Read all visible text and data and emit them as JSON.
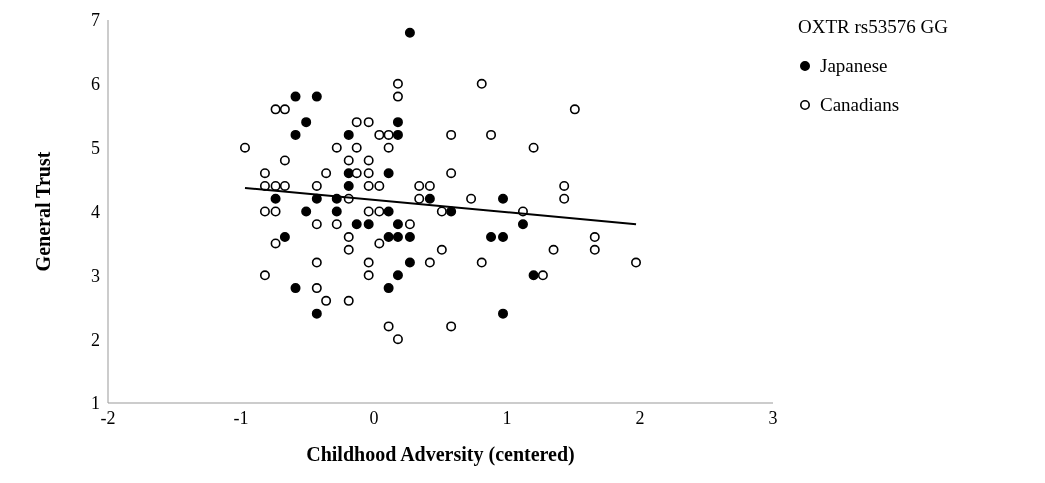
{
  "chart_data": {
    "type": "scatter",
    "xlabel": "Childhood Adversity (centered)",
    "ylabel": "General Trust",
    "legend_title": "OXTR rs53576 GG",
    "legend": "top right",
    "xlim": [
      -2,
      3
    ],
    "xticks": [
      -2,
      -1,
      0,
      1,
      2,
      3
    ],
    "ylim": [
      1,
      7
    ],
    "yticks": [
      1,
      2,
      3,
      4,
      5,
      6,
      7
    ],
    "series": [
      {
        "name": "Japanese",
        "color": "#000000",
        "marker": "circle",
        "x": [
          -0.59,
          -0.43,
          -0.51,
          -0.59,
          -0.19,
          -0.19,
          -0.19,
          -0.74,
          -0.43,
          -0.28,
          -0.51,
          -0.28,
          -0.13,
          -0.04,
          -0.67,
          -0.59,
          -0.43,
          0.27,
          0.18,
          0.18,
          0.11,
          0.42,
          0.97,
          0.11,
          0.58,
          0.18,
          1.12,
          0.11,
          0.18,
          0.27,
          0.88,
          0.97,
          0.27,
          0.18,
          1.2,
          0.11,
          0.97
        ],
        "values": [
          5.8,
          5.8,
          5.4,
          5.2,
          5.2,
          4.6,
          4.4,
          4.2,
          4.2,
          4.2,
          4.0,
          4.0,
          3.8,
          3.8,
          3.6,
          2.8,
          2.4,
          6.8,
          5.4,
          5.2,
          4.6,
          4.2,
          4.2,
          4.0,
          4.0,
          3.8,
          3.8,
          3.6,
          3.6,
          3.6,
          3.6,
          3.6,
          3.2,
          3.0,
          3.0,
          2.8,
          2.4
        ]
      },
      {
        "name": "Canadians",
        "color": "#ffffff",
        "marker": "circle",
        "x": [
          -0.74,
          -0.67,
          -0.13,
          -0.04,
          0.04,
          -0.97,
          -0.28,
          -0.13,
          -0.67,
          -0.19,
          -0.04,
          -0.82,
          -0.36,
          -0.13,
          -0.04,
          -0.82,
          -0.74,
          -0.67,
          -0.43,
          -0.04,
          0.04,
          -0.19,
          -0.82,
          -0.74,
          -0.04,
          0.04,
          -0.43,
          -0.28,
          -0.19,
          -0.74,
          -0.19,
          0.04,
          -0.43,
          -0.04,
          -0.82,
          -0.04,
          -0.43,
          -0.36,
          -0.19,
          0.11,
          0.18,
          0.18,
          0.18,
          0.81,
          0.11,
          0.11,
          0.58,
          0.88,
          1.2,
          0.58,
          0.34,
          0.42,
          0.34,
          0.73,
          0.51,
          1.12,
          0.27,
          0.51,
          0.42,
          0.81,
          1.27,
          0.58,
          1.51,
          1.43,
          1.43,
          1.66,
          1.66,
          1.35,
          1.97
        ],
        "values": [
          5.6,
          5.6,
          5.4,
          5.4,
          5.2,
          5.0,
          5.0,
          5.0,
          4.8,
          4.8,
          4.8,
          4.6,
          4.6,
          4.6,
          4.6,
          4.4,
          4.4,
          4.4,
          4.4,
          4.4,
          4.4,
          4.2,
          4.0,
          4.0,
          4.0,
          4.0,
          3.8,
          3.8,
          3.6,
          3.5,
          3.4,
          3.5,
          3.2,
          3.2,
          3.0,
          3.0,
          2.8,
          2.6,
          2.6,
          2.2,
          2.0,
          6.0,
          5.8,
          6.0,
          5.2,
          5.0,
          5.2,
          5.2,
          5.0,
          4.6,
          4.4,
          4.4,
          4.2,
          4.2,
          4.0,
          4.0,
          3.8,
          3.4,
          3.2,
          3.2,
          3.0,
          2.2,
          5.6,
          4.4,
          4.2,
          3.6,
          3.4,
          3.4,
          3.2
        ]
      },
      {
        "type": "line",
        "color": "#000000",
        "marker": "none",
        "x": [
          -0.97,
          1.97
        ],
        "values": [
          4.37,
          3.8
        ]
      }
    ]
  }
}
